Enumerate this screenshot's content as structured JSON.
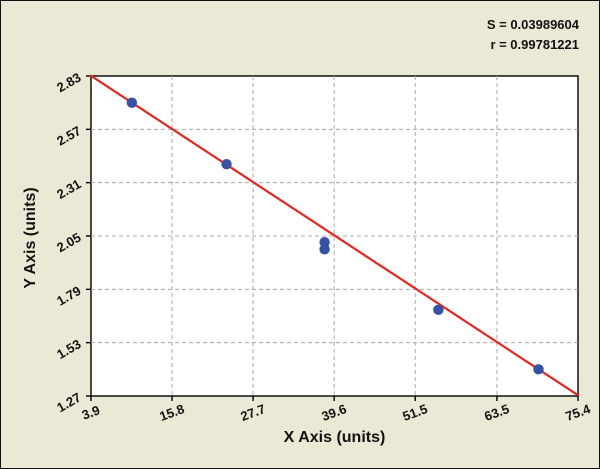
{
  "chart_data": {
    "type": "scatter",
    "title": "",
    "xlabel": "X Axis (units)",
    "ylabel": "Y Axis (units)",
    "xlim": [
      3.9,
      75.4
    ],
    "ylim": [
      1.27,
      2.83
    ],
    "x_ticks": [
      "3.9",
      "15.8",
      "27.7",
      "39.6",
      "51.5",
      "63.5",
      "75.4"
    ],
    "y_ticks": [
      "1.27",
      "1.53",
      "1.79",
      "2.05",
      "2.31",
      "2.57",
      "2.83"
    ],
    "grid": "dashed",
    "legend": "none",
    "points": [
      [
        9.9,
        2.7
      ],
      [
        23.8,
        2.4
      ],
      [
        38.2,
        2.02
      ],
      [
        38.2,
        1.985
      ],
      [
        54.9,
        1.69
      ],
      [
        69.6,
        1.4
      ]
    ],
    "fit_line": {
      "x1": 3.9,
      "y1": 2.831,
      "x2": 75.4,
      "y2": 1.274
    },
    "annotations": [
      "S = 0.03989604",
      "r = 0.99781221"
    ],
    "colors": {
      "point": "#3552a7",
      "line": "#e8241c",
      "grid": "#a9a9a9",
      "background": "#ece8d6",
      "plot_bg": "#ffffff",
      "axis": "#000000"
    }
  }
}
